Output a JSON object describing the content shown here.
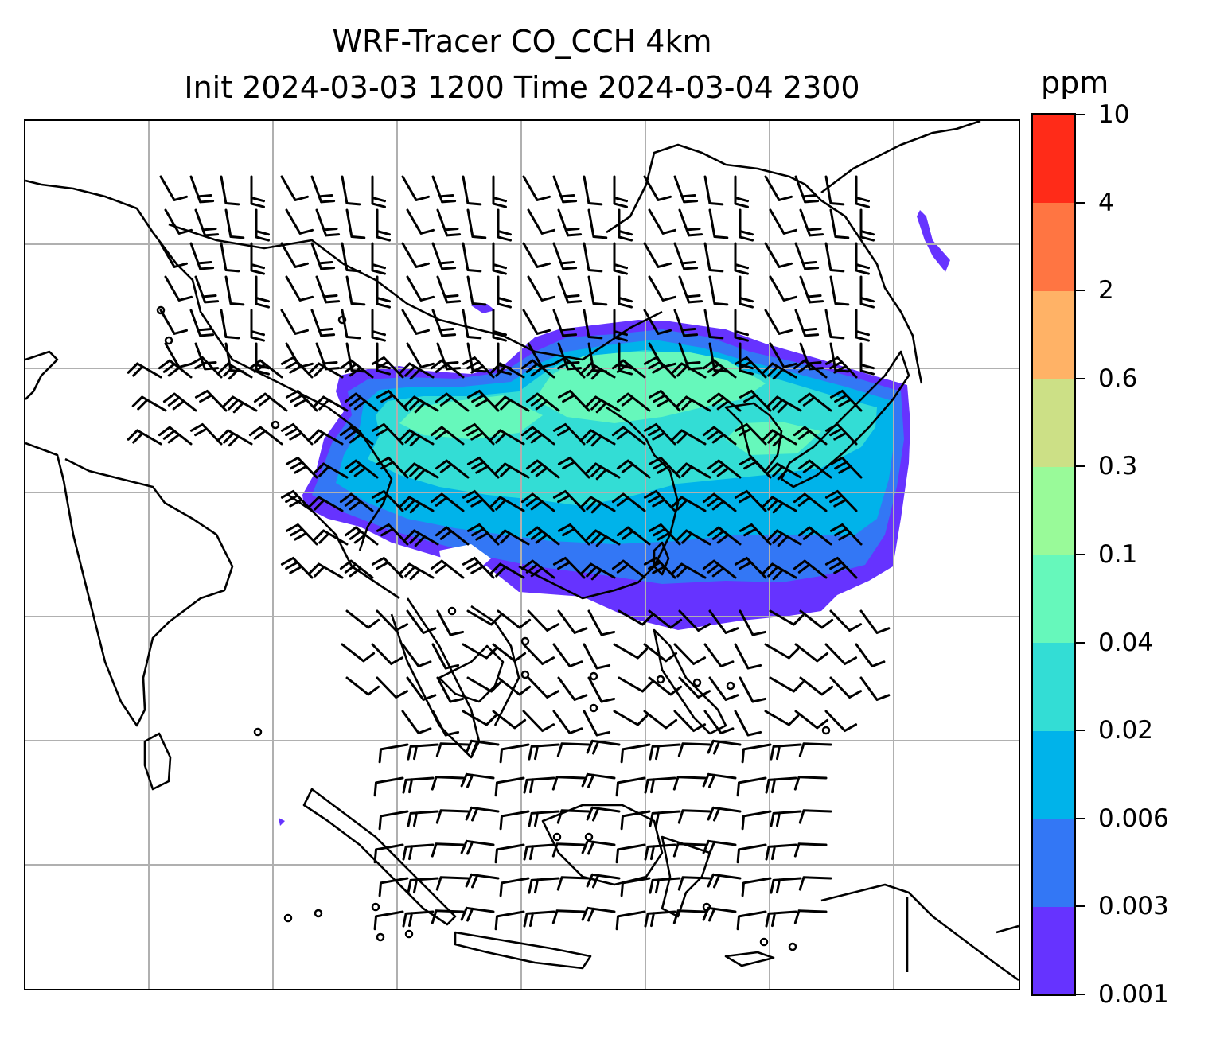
{
  "title": {
    "line1": "WRF-Tracer CO_CCH 4km",
    "line2": "Init 2024-03-03 1200 Time 2024-03-04 2300"
  },
  "colorbar": {
    "unit": "ppm",
    "levels": [
      "0.001",
      "0.003",
      "0.006",
      "0.02",
      "0.04",
      "0.1",
      "0.3",
      "0.6",
      "2",
      "4",
      "10"
    ],
    "colors": [
      "#6633ff",
      "#3377f5",
      "#00b3ea",
      "#33ddd5",
      "#66f8bb",
      "#99fa99",
      "#cce086",
      "#ffb266",
      "#ff7542",
      "#ff2b18"
    ]
  },
  "map": {
    "gridlines": true,
    "plume_color_outer": "#6633ff",
    "plume_color_mid": "#3377f5",
    "plume_color_inner": "#00b3ea",
    "plume_color_core": "#33ddd5",
    "plume_color_peak": "#66f8bb"
  }
}
